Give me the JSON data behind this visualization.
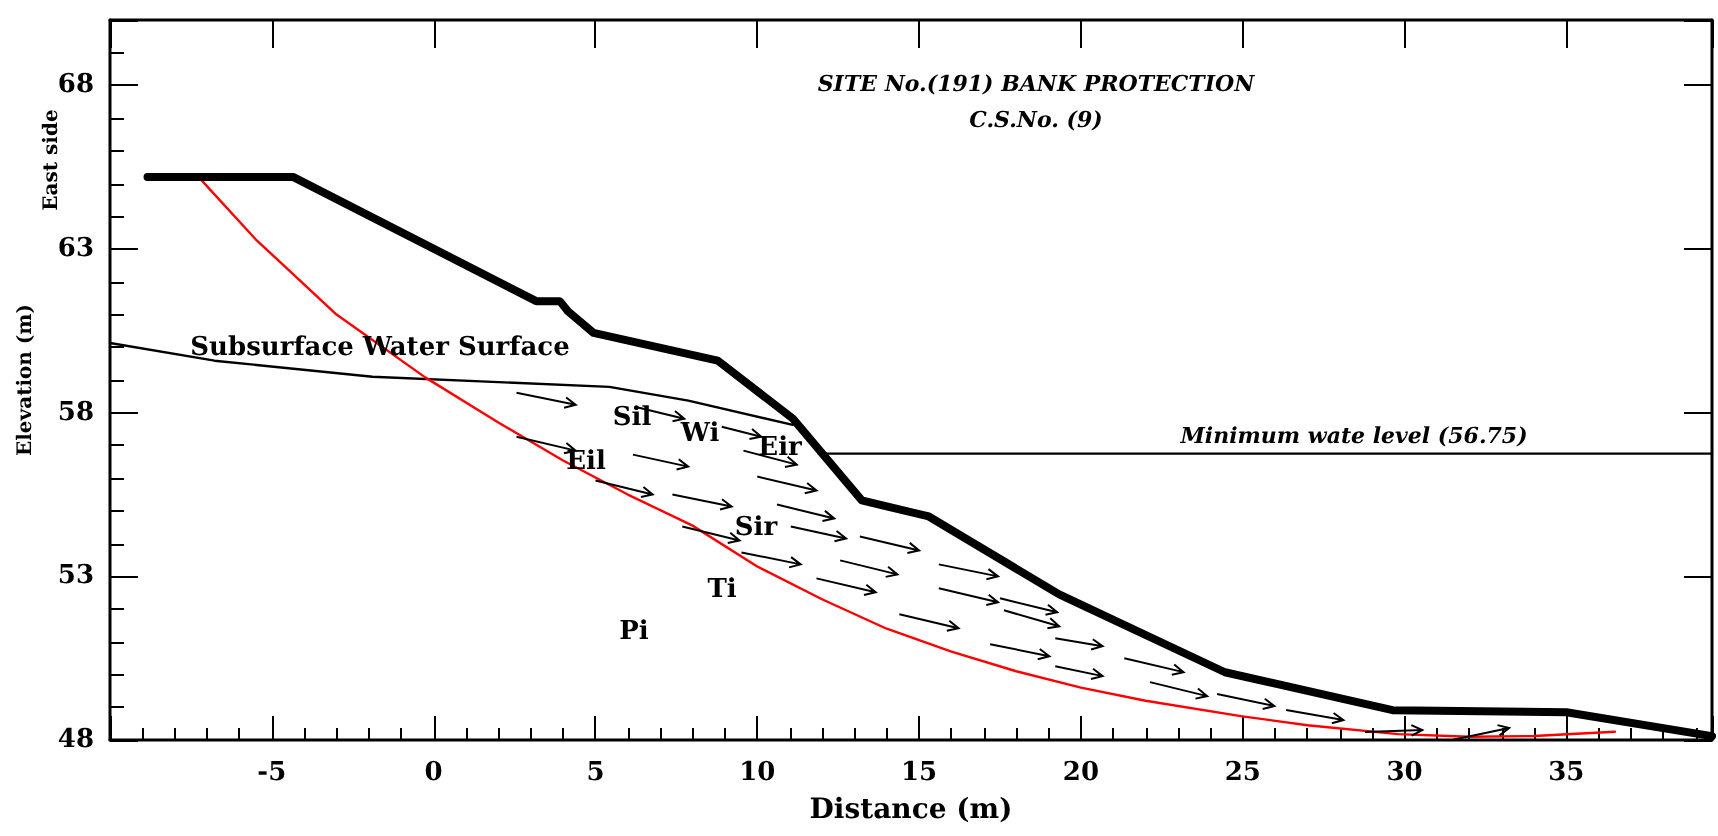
{
  "chart_data": {
    "type": "line",
    "title": "SITE No.(191) BANK PROTECTION",
    "subtitle": "C.S.No. (9)",
    "xlabel": "Distance (m)",
    "ylabel": "Elevation (m)",
    "xlim": [
      -10,
      39.5
    ],
    "ylim": [
      48,
      70
    ],
    "xticks": [
      -5,
      0,
      5,
      10,
      15,
      20,
      25,
      30,
      35
    ],
    "yticks": [
      48,
      53,
      58,
      63,
      68
    ],
    "grid": false,
    "marker": "none",
    "line_style": "solid",
    "series": [
      {
        "color": "#000000",
        "x": [
          -8.84,
          -4.33,
          3.17,
          3.9,
          4.15,
          4.94,
          8.78,
          11.1,
          13.23,
          15.3,
          19.33,
          24.45,
          29.63,
          35.0,
          39.5
        ],
        "values": [
          65.2,
          65.2,
          61.41,
          61.41,
          61.1,
          60.44,
          59.59,
          57.82,
          55.32,
          54.83,
          52.45,
          50.07,
          48.91,
          48.85,
          48.12
        ]
      },
      {
        "color": "#000000",
        "x": [
          -10,
          -6.77,
          -1.89,
          5.43,
          7.87,
          11.1
        ],
        "values": [
          60.13,
          59.59,
          59.1,
          58.79,
          58.37,
          57.63
        ]
      },
      {
        "color": "#ff0000",
        "x": [
          -7.26,
          -5.5,
          -3,
          -0.26,
          2,
          4,
          6,
          8,
          10,
          12,
          14,
          16,
          18,
          20,
          22,
          24.94,
          27,
          29.8,
          32,
          34,
          36.5
        ],
        "values": [
          65.2,
          63.3,
          61.0,
          59.08,
          57.7,
          56.54,
          55.5,
          54.55,
          53.3,
          52.3,
          51.4,
          50.7,
          50.1,
          49.6,
          49.2,
          48.73,
          48.45,
          48.18,
          48.1,
          48.12,
          48.25
        ]
      },
      {
        "color": "#000000",
        "x": [
          11.9,
          39.5
        ],
        "values": [
          56.75,
          56.75
        ]
      }
    ],
    "annotations": [
      "East side",
      "Subsurface Water Surface",
      "Minimum wate level (56.75)",
      "Sil",
      "Wi",
      "Eir",
      "Eil",
      "Sir",
      "Ti",
      "Pi"
    ]
  }
}
